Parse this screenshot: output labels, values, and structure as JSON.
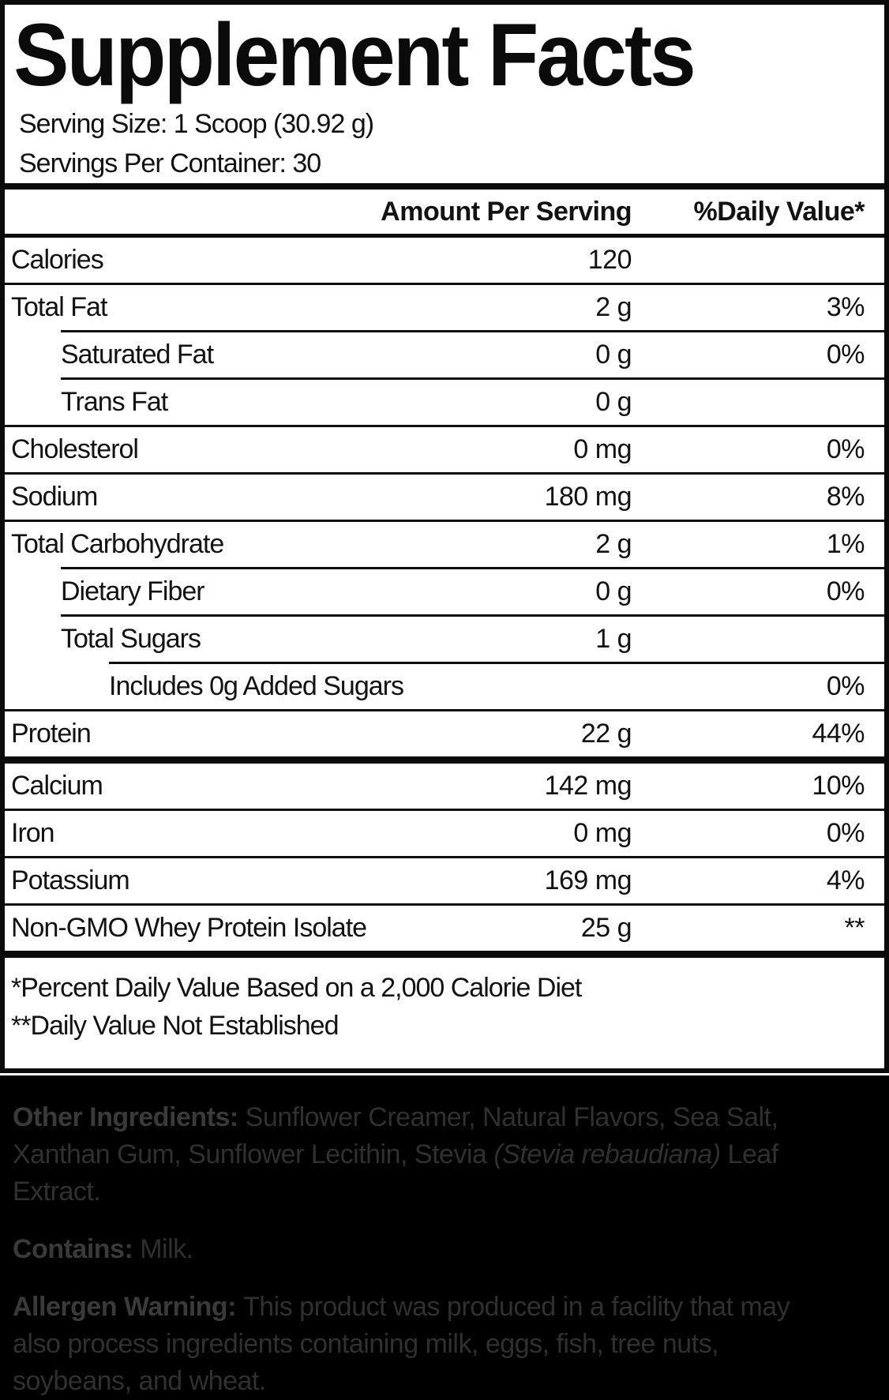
{
  "colors": {
    "ink": "#0b0b0b",
    "band_background": "#000000",
    "band_text": "#303030",
    "band_text_bold": "#3a3a3a"
  },
  "panel": {
    "title": "Supplement Facts",
    "serving_size": "Serving Size: 1 Scoop (30.92 g)",
    "servings_per_container": "Servings Per Container: 30",
    "table": {
      "amount_header": "Amount Per Serving",
      "dv_header": "%Daily Value*",
      "rows": [
        {
          "name": "Calories",
          "amount": "120",
          "dv": "",
          "indent": 0,
          "sep": "none"
        },
        {
          "name": "Total Fat",
          "amount": "2 g",
          "dv": "3%",
          "indent": 0,
          "sep": "full"
        },
        {
          "name": "Saturated Fat",
          "amount": "0 g",
          "dv": "0%",
          "indent": 1,
          "sep": "indent1"
        },
        {
          "name": "Trans Fat",
          "amount": "0 g",
          "dv": "",
          "indent": 1,
          "sep": "indent1"
        },
        {
          "name": "Cholesterol",
          "amount": "0 mg",
          "dv": "0%",
          "indent": 0,
          "sep": "full"
        },
        {
          "name": "Sodium",
          "amount": "180 mg",
          "dv": "8%",
          "indent": 0,
          "sep": "full"
        },
        {
          "name": "Total Carbohydrate",
          "amount": "2 g",
          "dv": "1%",
          "indent": 0,
          "sep": "full"
        },
        {
          "name": "Dietary Fiber",
          "amount": "0 g",
          "dv": "0%",
          "indent": 1,
          "sep": "indent1"
        },
        {
          "name": "Total Sugars",
          "amount": "1 g",
          "dv": "",
          "indent": 1,
          "sep": "indent1"
        },
        {
          "name": "Includes 0g Added Sugars",
          "amount": "",
          "dv": "0%",
          "indent": 2,
          "sep": "indent2"
        },
        {
          "name": "Protein",
          "amount": "22 g",
          "dv": "44%",
          "indent": 0,
          "sep": "full"
        },
        {
          "name": "Calcium",
          "amount": "142 mg",
          "dv": "10%",
          "indent": 0,
          "sep": "thick"
        },
        {
          "name": "Iron",
          "amount": "0 mg",
          "dv": "0%",
          "indent": 0,
          "sep": "full"
        },
        {
          "name": "Potassium",
          "amount": "169 mg",
          "dv": "4%",
          "indent": 0,
          "sep": "full"
        },
        {
          "name": "Non-GMO Whey Protein Isolate",
          "amount": "25 g",
          "dv": "**",
          "indent": 0,
          "sep": "full"
        }
      ]
    },
    "footnotes": [
      "*Percent Daily Value Based on a 2,000 Calorie Diet",
      "**Daily Value Not Established"
    ]
  },
  "info_band": {
    "paragraphs": [
      {
        "name": "other-ingredients-paragraph",
        "segments": [
          {
            "text": "Other Ingredients: ",
            "bold": true
          },
          {
            "text": "Sunflower Creamer, Natural Flavors, Sea Salt,\nXanthan Gum, Sunflower Lecithin, Stevia "
          },
          {
            "text": "(Stevia rebaudiana)",
            "italic": true
          },
          {
            "text": " Leaf\nExtract."
          }
        ]
      },
      {
        "name": "contains-paragraph",
        "segments": [
          {
            "text": "Contains: ",
            "bold": true
          },
          {
            "text": "Milk."
          }
        ]
      },
      {
        "name": "allergen-warning-paragraph",
        "segments": [
          {
            "text": "Allergen Warning: ",
            "bold": true
          },
          {
            "text": "This product was produced in a facility that may\nalso process ingredients containing milk, eggs, fish, tree nuts,\nsoybeans, and wheat."
          }
        ]
      }
    ]
  }
}
